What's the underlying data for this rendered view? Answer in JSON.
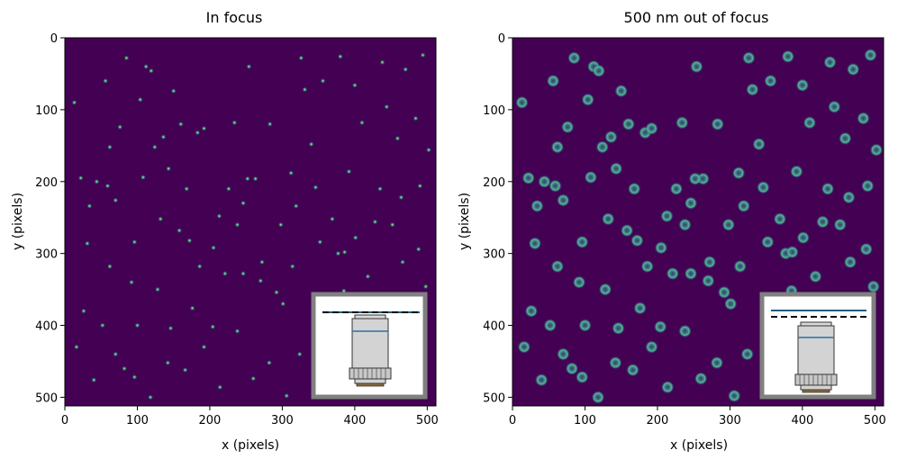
{
  "chart_data": [
    {
      "type": "heatmap",
      "title": "In focus",
      "xlabel": "x (pixels)",
      "ylabel": "y (pixels)",
      "xlim": [
        0,
        512
      ],
      "ylim": [
        512,
        0
      ],
      "xticks": [
        "0",
        "100",
        "200",
        "300",
        "400",
        "500"
      ],
      "yticks": [
        "0",
        "100",
        "200",
        "300",
        "400",
        "500"
      ],
      "inset": {
        "focal_plane_offset_nm": 0
      }
    },
    {
      "type": "heatmap",
      "title": "500 nm out of focus",
      "xlabel": "x (pixels)",
      "ylabel": "y (pixels)",
      "xlim": [
        0,
        512
      ],
      "ylim": [
        512,
        0
      ],
      "xticks": [
        "0",
        "100",
        "200",
        "300",
        "400",
        "500"
      ],
      "yticks": [
        "0",
        "100",
        "200",
        "300",
        "400",
        "500"
      ],
      "inset": {
        "focal_plane_offset_nm": 500
      }
    }
  ],
  "emitters": [
    [
      13,
      90
    ],
    [
      22,
      195
    ],
    [
      31,
      286
    ],
    [
      44,
      200
    ],
    [
      59,
      206
    ],
    [
      70,
      226
    ],
    [
      76,
      124
    ],
    [
      85,
      28
    ],
    [
      96,
      284
    ],
    [
      104,
      86
    ],
    [
      112,
      40
    ],
    [
      119,
      46
    ],
    [
      124,
      152
    ],
    [
      136,
      138
    ],
    [
      143,
      182
    ],
    [
      150,
      74
    ],
    [
      158,
      268
    ],
    [
      168,
      210
    ],
    [
      172,
      282
    ],
    [
      183,
      132
    ],
    [
      192,
      126
    ],
    [
      205,
      292
    ],
    [
      213,
      248
    ],
    [
      221,
      328
    ],
    [
      234,
      118
    ],
    [
      238,
      260
    ],
    [
      246,
      328
    ],
    [
      254,
      40
    ],
    [
      263,
      196
    ],
    [
      270,
      338
    ],
    [
      283,
      120
    ],
    [
      292,
      354
    ],
    [
      301,
      370
    ],
    [
      312,
      188
    ],
    [
      319,
      234
    ],
    [
      331,
      72
    ],
    [
      340,
      148
    ],
    [
      352,
      284
    ],
    [
      361,
      380
    ],
    [
      369,
      252
    ],
    [
      377,
      300
    ],
    [
      385,
      352
    ],
    [
      392,
      186
    ],
    [
      401,
      278
    ],
    [
      410,
      118
    ],
    [
      418,
      332
    ],
    [
      426,
      376
    ],
    [
      435,
      210
    ],
    [
      444,
      96
    ],
    [
      452,
      260
    ],
    [
      459,
      140
    ],
    [
      466,
      312
    ],
    [
      474,
      368
    ],
    [
      484,
      112
    ],
    [
      490,
      206
    ],
    [
      498,
      346
    ],
    [
      502,
      156
    ],
    [
      26,
      380
    ],
    [
      52,
      400
    ],
    [
      70,
      440
    ],
    [
      82,
      460
    ],
    [
      96,
      472
    ],
    [
      118,
      500
    ],
    [
      142,
      452
    ],
    [
      166,
      462
    ],
    [
      192,
      430
    ],
    [
      214,
      486
    ],
    [
      238,
      408
    ],
    [
      260,
      474
    ],
    [
      282,
      452
    ],
    [
      306,
      498
    ],
    [
      324,
      440
    ],
    [
      34,
      234
    ],
    [
      62,
      318
    ],
    [
      92,
      340
    ],
    [
      128,
      350
    ],
    [
      146,
      404
    ],
    [
      186,
      318
    ],
    [
      226,
      210
    ],
    [
      246,
      230
    ],
    [
      272,
      312
    ],
    [
      298,
      260
    ],
    [
      326,
      28
    ],
    [
      356,
      60
    ],
    [
      380,
      26
    ],
    [
      400,
      66
    ],
    [
      438,
      34
    ],
    [
      470,
      44
    ],
    [
      494,
      24
    ],
    [
      16,
      430
    ],
    [
      40,
      476
    ],
    [
      62,
      152
    ],
    [
      108,
      194
    ],
    [
      132,
      252
    ],
    [
      176,
      376
    ],
    [
      204,
      402
    ],
    [
      252,
      196
    ],
    [
      314,
      318
    ],
    [
      346,
      208
    ],
    [
      386,
      298
    ],
    [
      428,
      256
    ],
    [
      464,
      222
    ],
    [
      488,
      294
    ],
    [
      56,
      60
    ],
    [
      100,
      400
    ],
    [
      160,
      120
    ]
  ],
  "axes_style": {
    "colormap": "viridis",
    "background": "#440154"
  }
}
